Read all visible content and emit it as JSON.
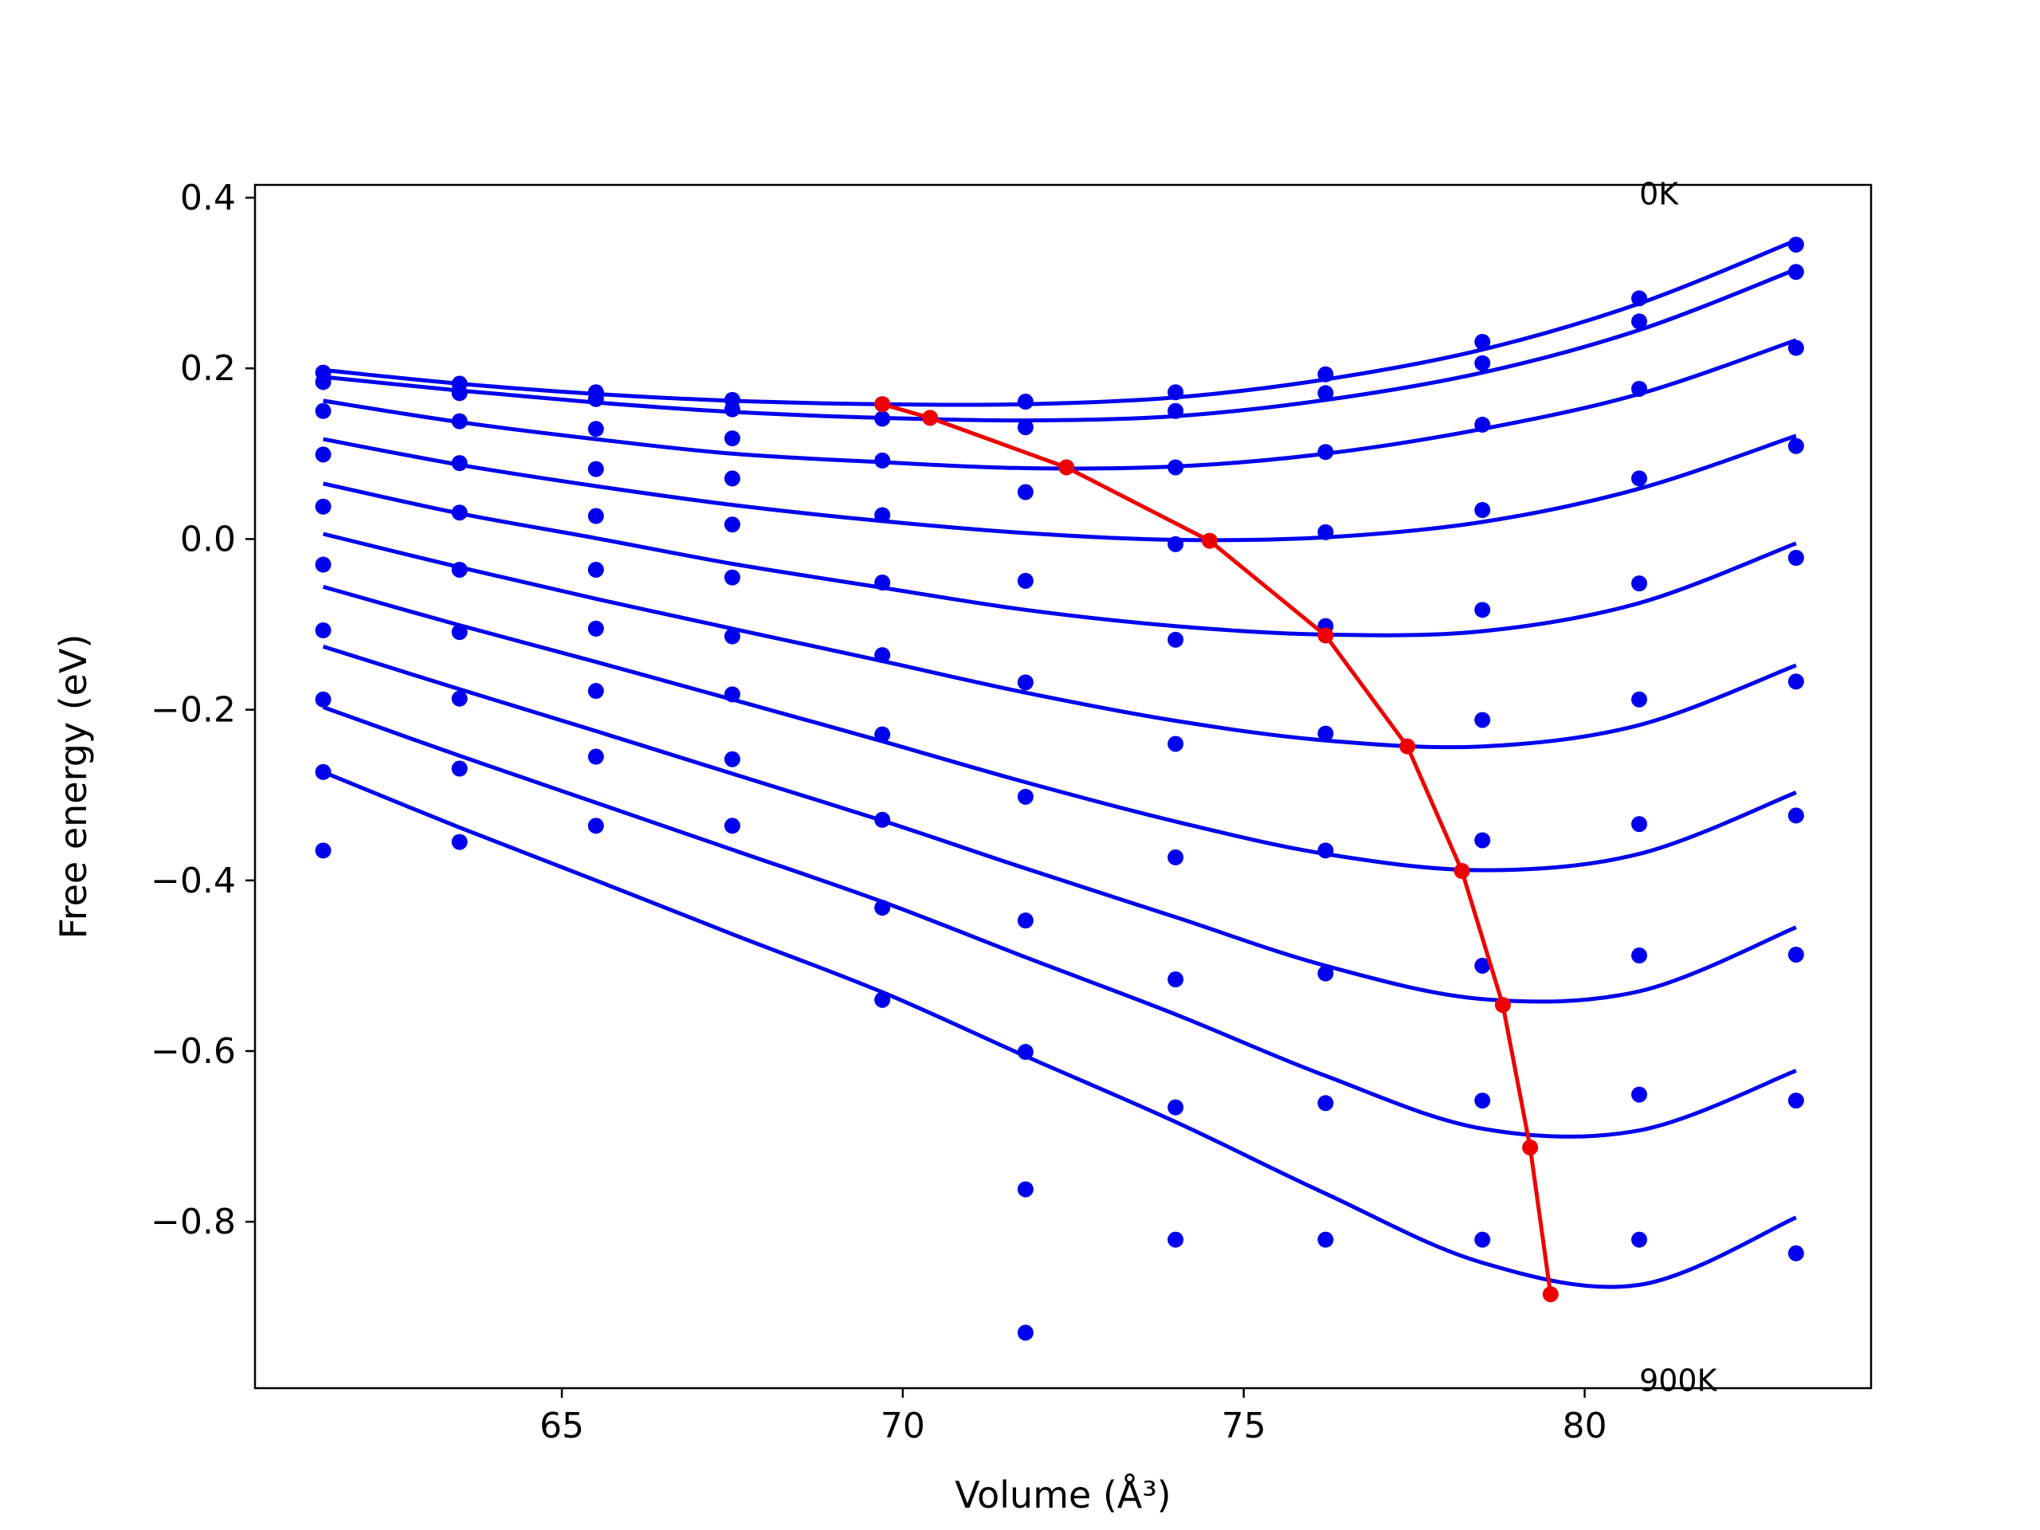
{
  "chart_data": {
    "type": "scatter",
    "title": "",
    "xlabel": "Volume (Å³)",
    "ylabel": "Free energy (eV)",
    "xlim": [
      60.5,
      84.2
    ],
    "ylim": [
      -0.995,
      0.415
    ],
    "x_ticks": [
      65,
      70,
      75,
      80
    ],
    "x_tick_labels": [
      "65",
      "70",
      "75",
      "80"
    ],
    "y_ticks": [
      0.4,
      0.2,
      0.0,
      -0.2,
      -0.4,
      -0.6,
      -0.8
    ],
    "y_tick_labels": [
      "0.4",
      "0.2",
      "0.0",
      "−0.2",
      "−0.4",
      "−0.6",
      "−0.8"
    ],
    "grid": false,
    "legend": "none",
    "colors": {
      "points": "#0000ee",
      "fit_curves": "#0000ee",
      "minimum_path": "#ee0000",
      "axes": "#000000"
    },
    "annotations": [
      {
        "text": "0K",
        "x": 80.8,
        "y": 0.405
      },
      {
        "text": "900K",
        "x": 80.8,
        "y": -0.985
      }
    ],
    "x": [
      61.5,
      63.5,
      65.5,
      67.5,
      69.7,
      71.8,
      74.0,
      76.2,
      78.5,
      80.8,
      83.1
    ],
    "series": [
      {
        "points": [
          0.195,
          0.182,
          0.172,
          0.163,
          0.158,
          0.161,
          0.172,
          0.193,
          0.231,
          0.282,
          0.345
        ],
        "fit": [
          0.198,
          0.182,
          0.17,
          0.162,
          0.158,
          0.158,
          0.166,
          0.187,
          0.222,
          0.276,
          0.35
        ]
      },
      {
        "points": [
          0.184,
          0.171,
          0.164,
          0.152,
          0.141,
          0.131,
          0.15,
          0.171,
          0.206,
          0.255,
          0.313
        ],
        "fit": [
          0.19,
          0.174,
          0.16,
          0.149,
          0.142,
          0.139,
          0.144,
          0.163,
          0.195,
          0.245,
          0.316
        ]
      },
      {
        "points": [
          0.15,
          0.138,
          0.129,
          0.118,
          0.092,
          0.055,
          0.084,
          0.102,
          0.134,
          0.176,
          0.224
        ],
        "fit": [
          0.162,
          0.137,
          0.117,
          0.1,
          0.09,
          0.083,
          0.085,
          0.1,
          0.129,
          0.17,
          0.233
        ]
      },
      {
        "points": [
          0.099,
          0.089,
          0.082,
          0.071,
          0.028,
          -0.049,
          -0.006,
          0.008,
          0.034,
          0.071,
          0.109
        ],
        "fit": [
          0.117,
          0.087,
          0.062,
          0.04,
          0.021,
          0.007,
          -0.001,
          0.002,
          0.02,
          0.059,
          0.121
        ]
      },
      {
        "points": [
          0.038,
          0.031,
          0.027,
          0.017,
          -0.051,
          -0.168,
          -0.118,
          -0.102,
          -0.083,
          -0.052,
          -0.022
        ],
        "fit": [
          0.065,
          0.03,
          0.001,
          -0.029,
          -0.057,
          -0.083,
          -0.102,
          -0.112,
          -0.108,
          -0.075,
          -0.005
        ]
      },
      {
        "points": [
          -0.03,
          -0.036,
          -0.036,
          -0.045,
          -0.136,
          -0.302,
          -0.24,
          -0.228,
          -0.212,
          -0.188,
          -0.167
        ],
        "fit": [
          0.006,
          -0.033,
          -0.07,
          -0.105,
          -0.143,
          -0.18,
          -0.213,
          -0.236,
          -0.243,
          -0.218,
          -0.148
        ]
      },
      {
        "points": [
          -0.107,
          -0.109,
          -0.105,
          -0.114,
          -0.229,
          -0.447,
          -0.373,
          -0.365,
          -0.353,
          -0.334,
          -0.324
        ],
        "fit": [
          -0.056,
          -0.101,
          -0.144,
          -0.188,
          -0.237,
          -0.285,
          -0.331,
          -0.369,
          -0.388,
          -0.369,
          -0.297
        ]
      },
      {
        "points": [
          -0.188,
          -0.187,
          -0.178,
          -0.182,
          -0.329,
          -0.601,
          -0.516,
          -0.509,
          -0.5,
          -0.488,
          -0.487
        ],
        "fit": [
          -0.126,
          -0.176,
          -0.225,
          -0.275,
          -0.33,
          -0.386,
          -0.443,
          -0.5,
          -0.539,
          -0.53,
          -0.455
        ]
      },
      {
        "points": [
          -0.273,
          -0.269,
          -0.255,
          -0.258,
          -0.432,
          -0.762,
          -0.666,
          -0.661,
          -0.658,
          -0.651,
          -0.658
        ],
        "fit": [
          -0.197,
          -0.254,
          -0.309,
          -0.364,
          -0.425,
          -0.49,
          -0.557,
          -0.629,
          -0.691,
          -0.693,
          -0.623
        ]
      },
      {
        "points": [
          -0.365,
          -0.355,
          -0.336,
          -0.336,
          -0.54,
          -0.93,
          -0.821,
          -0.821,
          -0.821,
          -0.821,
          -0.837
        ],
        "fit": [
          -0.273,
          -0.338,
          -0.4,
          -0.463,
          -0.531,
          -0.606,
          -0.683,
          -0.767,
          -0.848,
          -0.874,
          -0.795
        ]
      }
    ],
    "minimum_path": {
      "x": [
        69.7,
        70.4,
        72.4,
        74.5,
        76.2,
        77.4,
        78.2,
        78.8,
        79.2,
        79.5
      ],
      "y": [
        0.158,
        0.142,
        0.084,
        -0.002,
        -0.113,
        -0.243,
        -0.389,
        -0.546,
        -0.713,
        -0.885
      ]
    }
  }
}
